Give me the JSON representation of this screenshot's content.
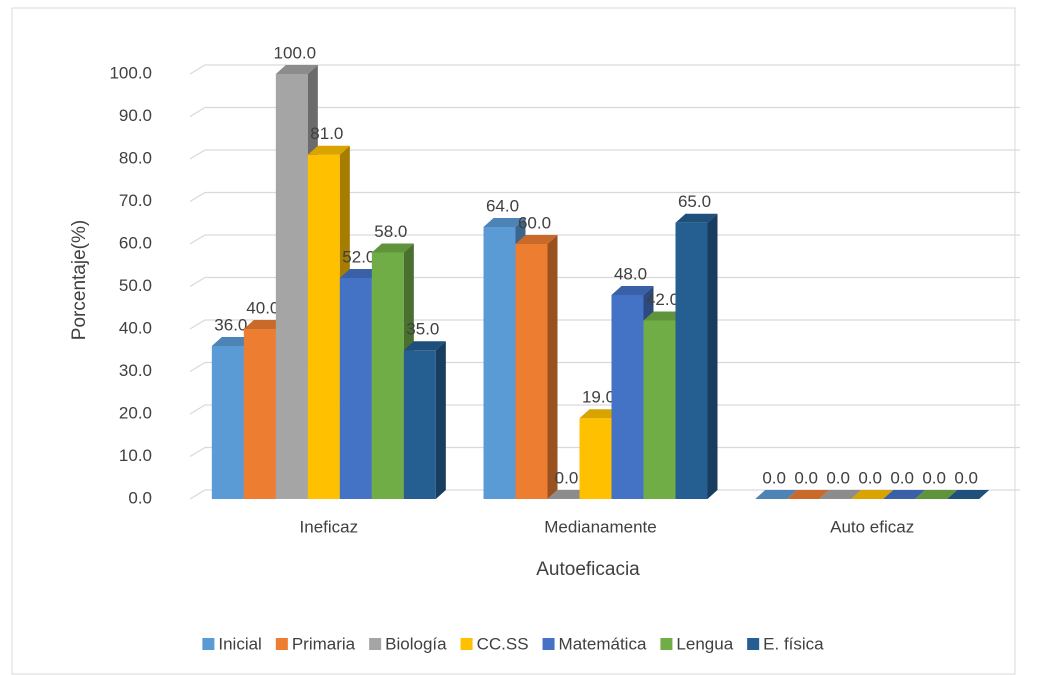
{
  "chart_data": {
    "type": "bar3d",
    "x_label": "Autoeficacia",
    "y_label": "Porcentaje(%)",
    "categories": [
      "Ineficaz",
      "Medianamente",
      "Auto eficaz"
    ],
    "series": [
      {
        "name": "Inicial",
        "color": "#5b9bd5",
        "values": [
          36,
          64,
          0
        ],
        "value_labels": [
          "36.0",
          "64.0",
          "0.0"
        ]
      },
      {
        "name": "Primaria",
        "color": "#ed7d31",
        "values": [
          40,
          60,
          0
        ],
        "value_labels": [
          "40.0",
          "60.0",
          "0.0"
        ]
      },
      {
        "name": "Biología",
        "color": "#a5a5a5",
        "values": [
          100,
          0,
          0
        ],
        "value_labels": [
          "100.0",
          "0.0",
          "0.0"
        ]
      },
      {
        "name": "CC.SS",
        "color": "#ffc000",
        "values": [
          81,
          19,
          0
        ],
        "value_labels": [
          "81.0",
          "19.0",
          "0.0"
        ]
      },
      {
        "name": "Matemática",
        "color": "#4472c4",
        "values": [
          52,
          48,
          0
        ],
        "value_labels": [
          "52.0",
          "48.0",
          "0.0"
        ]
      },
      {
        "name": "Lengua",
        "color": "#70ad47",
        "values": [
          58,
          42,
          0
        ],
        "value_labels": [
          "58.0",
          "42.0",
          "0.0"
        ]
      },
      {
        "name": "E. física",
        "color": "#255e91",
        "values": [
          35,
          65,
          0
        ],
        "value_labels": [
          "35.0",
          "65.0",
          "0.0"
        ]
      }
    ],
    "ylim": [
      0,
      100
    ],
    "yticks": [
      {
        "value": 0,
        "label": "0.0"
      },
      {
        "value": 10,
        "label": "10.0"
      },
      {
        "value": 20,
        "label": "20.0"
      },
      {
        "value": 30,
        "label": "30.0"
      },
      {
        "value": 40,
        "label": "40.0"
      },
      {
        "value": 50,
        "label": "50.0"
      },
      {
        "value": 60,
        "label": "60.0"
      },
      {
        "value": 70,
        "label": "70.0"
      },
      {
        "value": 80,
        "label": "80.0"
      },
      {
        "value": 90,
        "label": "90.0"
      },
      {
        "value": 100,
        "label": "100.0"
      }
    ],
    "grid": true,
    "legend": "bottom"
  }
}
